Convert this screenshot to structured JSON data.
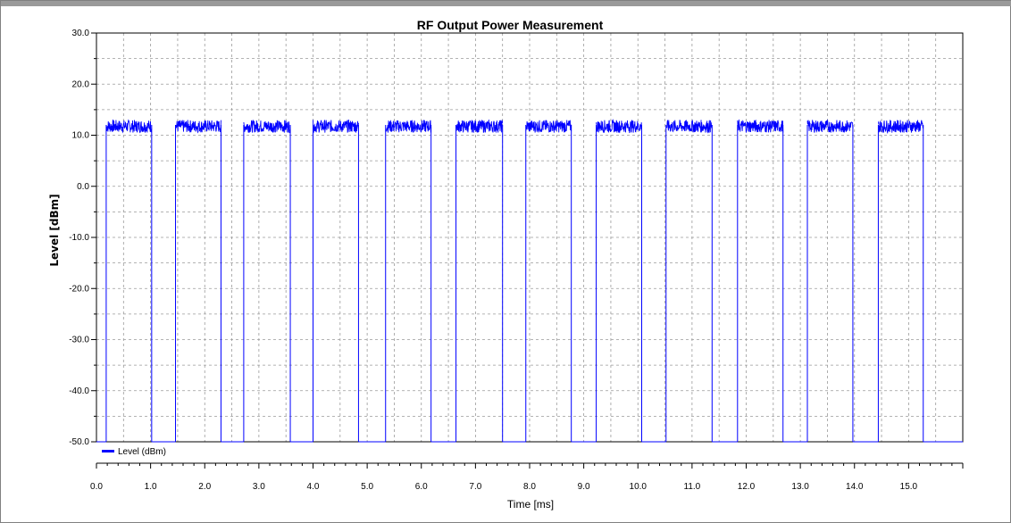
{
  "chart_data": {
    "type": "line",
    "title": "RF Output Power Measurement",
    "xlabel": "Time [ms]",
    "ylabel": "Level [dBm]",
    "xlim": [
      0,
      16.0
    ],
    "ylim": [
      -50,
      30
    ],
    "x_ticks": [
      "0.0",
      "1.0",
      "2.0",
      "3.0",
      "4.0",
      "5.0",
      "6.0",
      "7.0",
      "8.0",
      "9.0",
      "10.0",
      "11.0",
      "12.0",
      "13.0",
      "14.0",
      "15.0"
    ],
    "y_ticks": [
      "30.0",
      "20.0",
      "10.0",
      "0.0",
      "-10.0",
      "-20.0",
      "-30.0",
      "-40.0",
      "-50.0"
    ],
    "grid": true,
    "legend_position": "bottom-left",
    "series": [
      {
        "name": "Level (dBm)",
        "color": "#0000ff",
        "baseline": -50,
        "on_level_min": 10.5,
        "on_level_max": 13,
        "bursts": [
          [
            0.18,
            1.02
          ],
          [
            1.46,
            2.3
          ],
          [
            2.72,
            3.58
          ],
          [
            4.0,
            4.84
          ],
          [
            5.34,
            6.18
          ],
          [
            6.64,
            7.5
          ],
          [
            7.93,
            8.77
          ],
          [
            9.23,
            10.07
          ],
          [
            10.52,
            11.37
          ],
          [
            11.84,
            12.68
          ],
          [
            13.13,
            13.97
          ],
          [
            14.44,
            15.27
          ]
        ]
      }
    ]
  }
}
